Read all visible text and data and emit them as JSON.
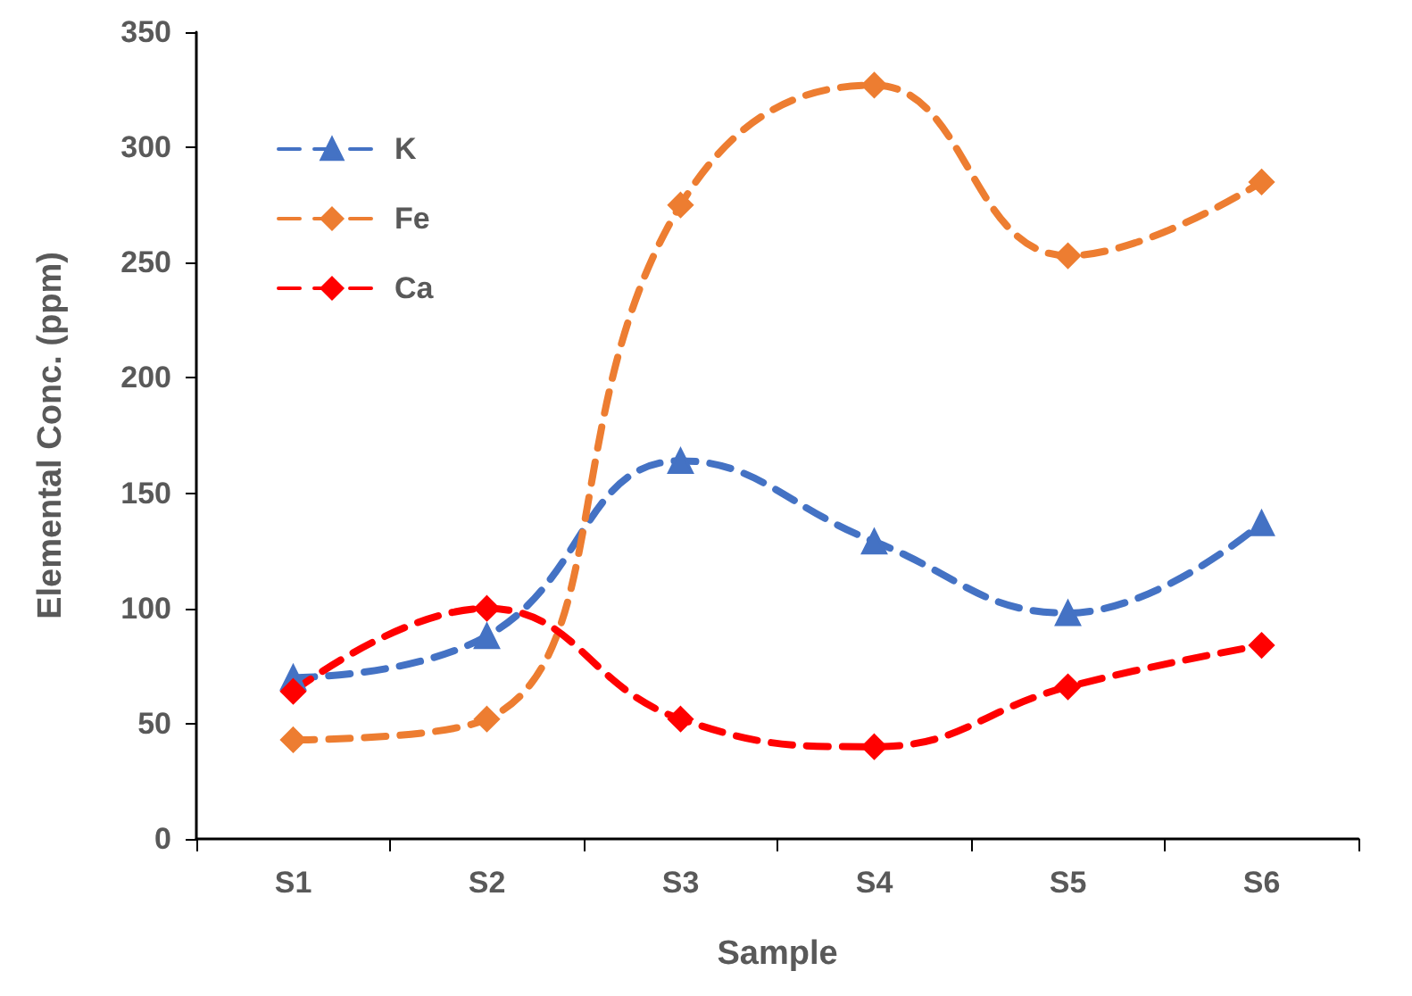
{
  "chart_data": {
    "type": "line",
    "xlabel": "Sample",
    "ylabel": "Elemental Conc. (ppm)",
    "categories": [
      "S1",
      "S2",
      "S3",
      "S4",
      "S5",
      "S6"
    ],
    "series": [
      {
        "name": "K",
        "color": "#4472c4",
        "marker": "triangle",
        "values": [
          70,
          88,
          164,
          129,
          98,
          137
        ]
      },
      {
        "name": "Fe",
        "color": "#ed7d31",
        "marker": "diamond",
        "values": [
          43,
          52,
          275,
          327,
          253,
          285
        ]
      },
      {
        "name": "Ca",
        "color": "#ff0000",
        "marker": "diamond",
        "values": [
          64,
          100,
          52,
          40,
          66,
          84
        ]
      }
    ],
    "ylim": [
      0,
      350
    ],
    "yticks": [
      0,
      50,
      100,
      150,
      200,
      250,
      300,
      350
    ],
    "grid": false,
    "legend": "top left",
    "line_style": "dashed"
  }
}
